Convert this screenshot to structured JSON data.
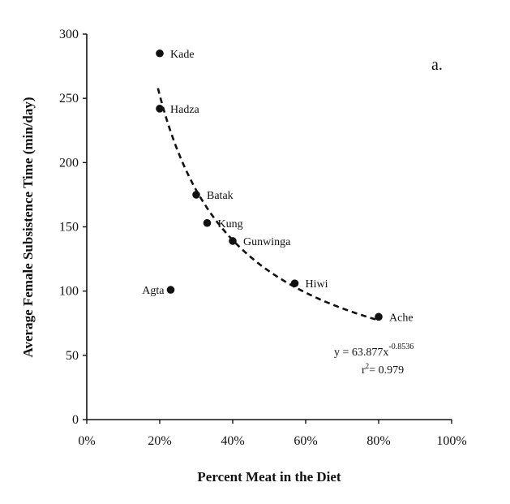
{
  "chart_data": {
    "type": "scatter",
    "panel_label": "a.",
    "title": "",
    "xlabel": "Percent Meat in the Diet",
    "ylabel": "Average Female Subsistence Time (min/day)",
    "xlim": [
      0,
      100
    ],
    "ylim": [
      0,
      300
    ],
    "x_ticks": [
      0,
      20,
      40,
      60,
      80,
      100
    ],
    "x_tick_labels": [
      "0%",
      "20%",
      "40%",
      "60%",
      "80%",
      "100%"
    ],
    "y_ticks": [
      0,
      50,
      100,
      150,
      200,
      250,
      300
    ],
    "y_tick_labels": [
      "0",
      "50",
      "100",
      "150",
      "200",
      "250",
      "300"
    ],
    "grid": false,
    "points": [
      {
        "label": "Kade",
        "x": 20,
        "y": 285,
        "label_side": "right"
      },
      {
        "label": "Hadza",
        "x": 20,
        "y": 242,
        "label_side": "right"
      },
      {
        "label": "Batak",
        "x": 30,
        "y": 175,
        "label_side": "right"
      },
      {
        "label": "Kung",
        "x": 33,
        "y": 153,
        "label_side": "right"
      },
      {
        "label": "Gunwinga",
        "x": 40,
        "y": 139,
        "label_side": "right"
      },
      {
        "label": "Hiwi",
        "x": 57,
        "y": 106,
        "label_side": "right"
      },
      {
        "label": "Ache",
        "x": 80,
        "y": 80,
        "label_side": "right"
      },
      {
        "label": "Agta",
        "x": 23,
        "y": 101,
        "label_side": "left"
      }
    ],
    "trendline": {
      "type": "power",
      "coefficient": 63.877,
      "exponent": -0.8536,
      "x_range": [
        19.5,
        80
      ],
      "style": "dashed",
      "equation_text": "y = 63.877x",
      "exponent_text": "-0.8536",
      "r2_prefix": "r",
      "r2_sup": "2",
      "r2_text": "= 0.979"
    }
  }
}
